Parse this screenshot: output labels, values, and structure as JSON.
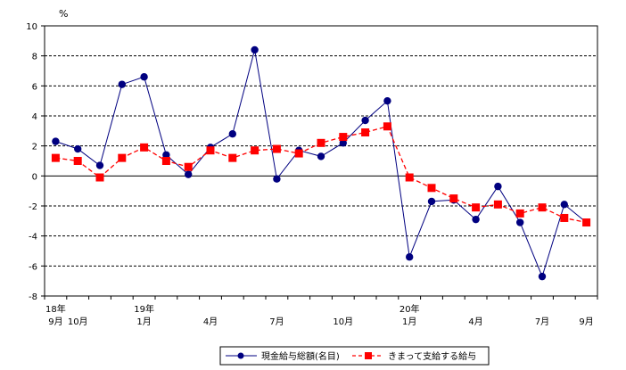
{
  "chart_data": {
    "type": "line",
    "unit_label": "%",
    "ylim": [
      -8,
      10
    ],
    "y_ticks": [
      10,
      8,
      6,
      4,
      2,
      0,
      -2,
      -4,
      -6,
      -8
    ],
    "grid": true,
    "legend_position": "bottom-center",
    "x_labels": [
      {
        "i": 0,
        "top": "18年",
        "bottom": "9月"
      },
      {
        "i": 1,
        "top": "",
        "bottom": "10月"
      },
      {
        "i": 4,
        "top": "19年",
        "bottom": "1月"
      },
      {
        "i": 7,
        "top": "",
        "bottom": "4月"
      },
      {
        "i": 10,
        "top": "",
        "bottom": "7月"
      },
      {
        "i": 13,
        "top": "",
        "bottom": "10月"
      },
      {
        "i": 16,
        "top": "20年",
        "bottom": "1月"
      },
      {
        "i": 19,
        "top": "",
        "bottom": "4月"
      },
      {
        "i": 22,
        "top": "",
        "bottom": "7月"
      },
      {
        "i": 24,
        "top": "",
        "bottom": "9月"
      }
    ],
    "series": [
      {
        "name": "現金給与総額(名目)",
        "color": "#000080",
        "marker": "circle",
        "line_style": "solid",
        "values": [
          2.3,
          1.8,
          0.7,
          6.1,
          6.6,
          1.4,
          0.1,
          1.9,
          2.8,
          8.4,
          -0.2,
          1.7,
          1.3,
          2.2,
          3.7,
          5.0,
          -5.4,
          -1.7,
          -1.6,
          -2.9,
          -0.7,
          -3.1,
          -6.7,
          -1.9,
          -3.1
        ]
      },
      {
        "name": "きまって支給する給与",
        "color": "#ff0000",
        "marker": "square",
        "line_style": "dashed",
        "values": [
          1.2,
          1.0,
          -0.1,
          1.2,
          1.9,
          1.0,
          0.6,
          1.7,
          1.2,
          1.7,
          1.8,
          1.5,
          2.2,
          2.6,
          2.9,
          3.3,
          -0.1,
          -0.8,
          -1.5,
          -2.1,
          -1.9,
          -2.5,
          -2.1,
          -2.8,
          -3.1
        ]
      }
    ]
  }
}
